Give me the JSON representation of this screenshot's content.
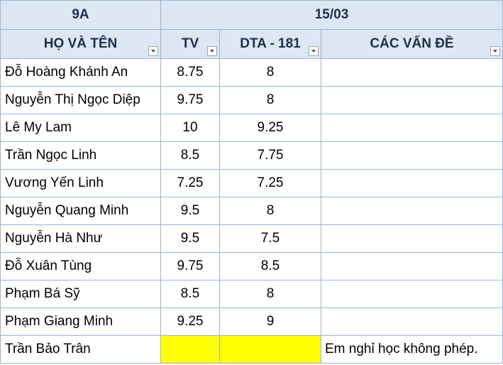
{
  "sheet": {
    "class_label": "9A",
    "date_label": "15/03",
    "columns": {
      "name": "HỌ VÀ TÊN",
      "tv": "TV",
      "dta": "DTA - 181",
      "issues": "CÁC VẤN ĐỀ"
    },
    "rows": [
      {
        "name": "Đỗ Hoàng Khánh An",
        "tv": "8.75",
        "dta": "8",
        "issue": ""
      },
      {
        "name": "Nguyễn Thị Ngọc Diệp",
        "tv": "9.75",
        "dta": "8",
        "issue": ""
      },
      {
        "name": "Lê My Lam",
        "tv": "10",
        "dta": "9.25",
        "issue": ""
      },
      {
        "name": "Trần Ngọc Linh",
        "tv": "8.5",
        "dta": "7.75",
        "issue": ""
      },
      {
        "name": "Vương Yến Linh",
        "tv": "7.25",
        "dta": "7.25",
        "issue": ""
      },
      {
        "name": "Nguyễn Quang Minh",
        "tv": "9.5",
        "dta": "8",
        "issue": ""
      },
      {
        "name": "Nguyễn Hà Như",
        "tv": "9.5",
        "dta": "7.5",
        "issue": ""
      },
      {
        "name": "Đỗ Xuân Tùng",
        "tv": "9.75",
        "dta": "8.5",
        "issue": ""
      },
      {
        "name": "Phạm Bá Sỹ",
        "tv": "8.5",
        "dta": "8",
        "issue": ""
      },
      {
        "name": "Phạm Giang Minh",
        "tv": "9.25",
        "dta": "9",
        "issue": ""
      },
      {
        "name": "Trần Bảo Trân",
        "tv": "",
        "dta": "",
        "issue": "Em nghỉ học không phép."
      }
    ],
    "colors": {
      "header_bg": "#dde6f3",
      "grid": "#9bb3d3",
      "highlight": "#ffff00"
    },
    "filter_icon": "filter-dropdown-icon"
  }
}
